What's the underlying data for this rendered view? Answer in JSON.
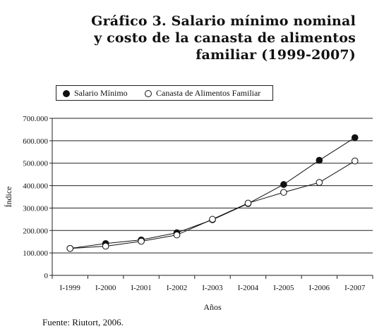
{
  "title_lines": [
    "Gráfico 3. Salario mínimo nominal",
    "y costo de la canasta de alimentos",
    "familiar (1999-2007)"
  ],
  "legend": {
    "items": [
      "Salario Mínimo",
      "Canasta de Alimentos Familiar"
    ],
    "placement": "top-left"
  },
  "source": "Fuente: Riutort, 2006.",
  "chart_data": {
    "type": "line",
    "title": "Gráfico 3. Salario mínimo nominal y costo de la canasta de alimentos familiar (1999-2007)",
    "xlabel": "Años",
    "ylabel": "Índice",
    "categories": [
      "I-1999",
      "I-2000",
      "I-2001",
      "I-2002",
      "I-2003",
      "I-2004",
      "I-2005",
      "I-2006",
      "I-2007"
    ],
    "ylim": [
      0,
      700000
    ],
    "yticks": [
      0,
      100000,
      200000,
      300000,
      400000,
      500000,
      600000,
      700000
    ],
    "ytick_labels": [
      "0",
      "100.000",
      "200.000",
      "300.000",
      "400.000",
      "500.000",
      "600.000",
      "700.000"
    ],
    "grid": true,
    "series": [
      {
        "name": "Salario Mínimo",
        "marker": "filled",
        "color": "#111111",
        "values": [
          120000,
          142000,
          158000,
          190000,
          248000,
          320000,
          405000,
          513000,
          614000
        ]
      },
      {
        "name": "Canasta de Alimentos Familiar",
        "marker": "open",
        "color": "#111111",
        "values": [
          120000,
          130000,
          152000,
          180000,
          250000,
          322000,
          370000,
          414000,
          510000
        ]
      }
    ]
  }
}
